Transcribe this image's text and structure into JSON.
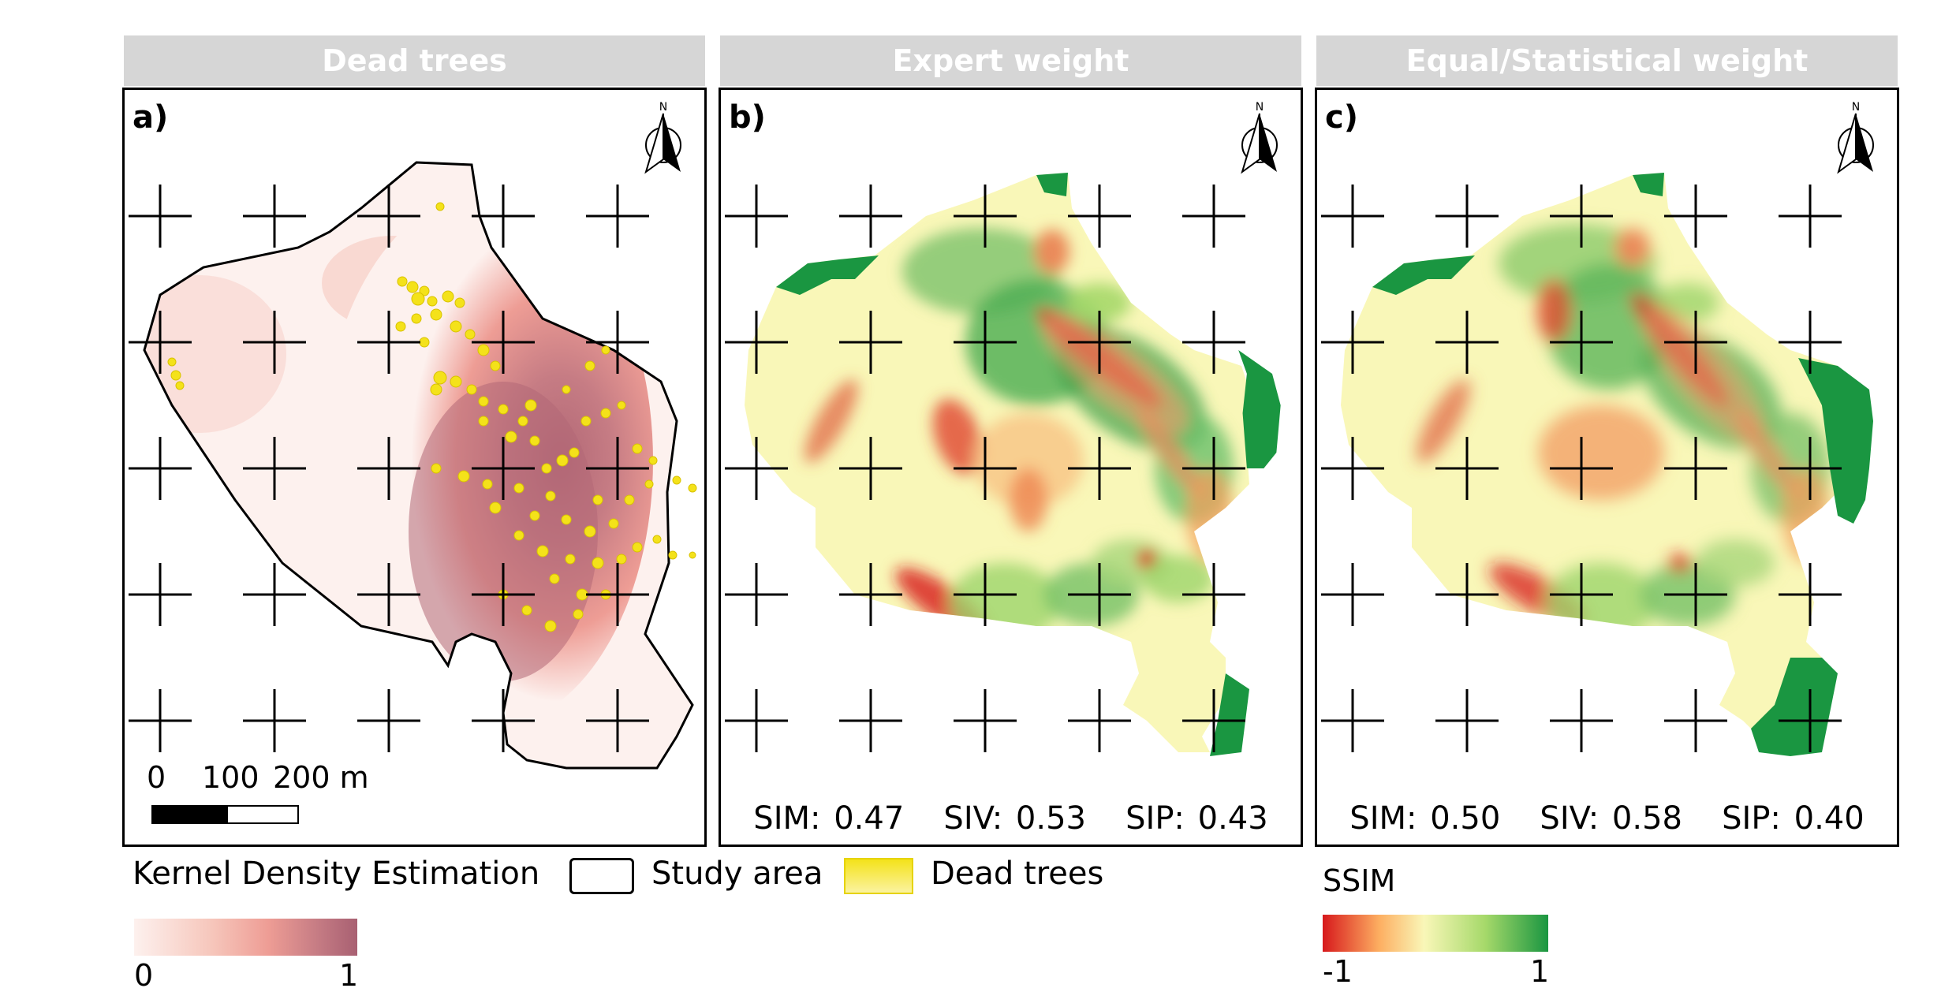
{
  "panels": [
    {
      "header": "Dead trees",
      "label": "a)",
      "north": "N"
    },
    {
      "header": "Expert weight",
      "label": "b)",
      "north": "N",
      "stats": {
        "sim_label": "SIM:",
        "sim": "0.47",
        "siv_label": "SIV:",
        "siv": "0.53",
        "sip_label": "SIP:",
        "sip": "0.43"
      }
    },
    {
      "header": "Equal/Statistical weight",
      "label": "c)",
      "north": "N",
      "stats": {
        "sim_label": "SIM:",
        "sim": "0.50",
        "siv_label": "SIV:",
        "siv": "0.58",
        "sip_label": "SIP:",
        "sip": "0.40"
      }
    }
  ],
  "scalebar": {
    "ticks": [
      "0",
      "100",
      "200 m"
    ]
  },
  "legend": {
    "kde_title": "Kernel Density Estimation",
    "kde_min": "0",
    "kde_max": "1",
    "study_area": "Study area",
    "dead_trees": "Dead trees",
    "ssim_title": "SSIM",
    "ssim_min": "-1",
    "ssim_max": "1"
  },
  "colors": {
    "kde_low": "#fdf1ee",
    "kde_mid": "#ee9d95",
    "kde_high": "#b26876",
    "ssim_low": "#d7191c",
    "ssim_mid": "#f9f7b8",
    "ssim_high": "#1a9641",
    "dead_tree": "#f4e21a",
    "header_bg": "#d6d6d6"
  }
}
